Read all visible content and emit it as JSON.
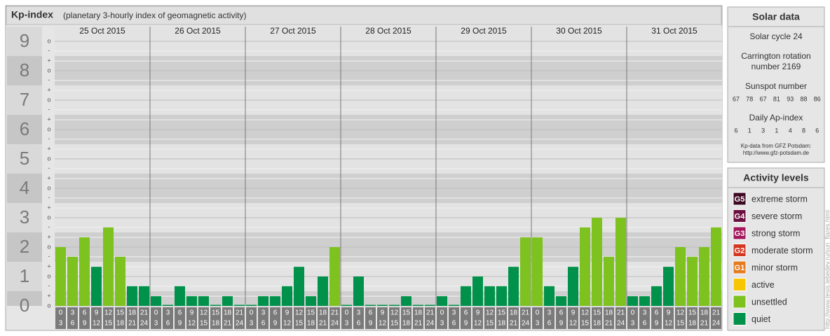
{
  "chart_data": {
    "type": "bar",
    "title": "Kp-index",
    "subtitle": "(planetary 3-hourly index of geomagnetic activity)",
    "ylim": [
      0,
      9
    ],
    "yticks": [
      0,
      1,
      2,
      3,
      4,
      5,
      6,
      7,
      8,
      9
    ],
    "minor_ticks": [
      {
        "value": 0,
        "label": "o"
      },
      {
        "value": 0.33,
        "label": "+"
      },
      {
        "value": 0.67,
        "label": "-"
      },
      {
        "value": 1,
        "label": "o"
      },
      {
        "value": 1.33,
        "label": "+"
      },
      {
        "value": 1.67,
        "label": "-"
      },
      {
        "value": 2,
        "label": "o"
      },
      {
        "value": 2.33,
        "label": "+"
      },
      {
        "value": 2.67,
        "label": "-"
      },
      {
        "value": 3,
        "label": "o"
      },
      {
        "value": 3.33,
        "label": "+"
      },
      {
        "value": 3.67,
        "label": "-"
      },
      {
        "value": 4,
        "label": "o"
      },
      {
        "value": 4.33,
        "label": "+"
      },
      {
        "value": 4.67,
        "label": "-"
      },
      {
        "value": 5,
        "label": "o"
      },
      {
        "value": 5.33,
        "label": "+"
      },
      {
        "value": 5.67,
        "label": "-"
      },
      {
        "value": 6,
        "label": "o"
      },
      {
        "value": 6.33,
        "label": "+"
      },
      {
        "value": 6.67,
        "label": "-"
      },
      {
        "value": 7,
        "label": "o"
      },
      {
        "value": 7.33,
        "label": "+"
      },
      {
        "value": 7.67,
        "label": "-"
      },
      {
        "value": 8,
        "label": "o"
      },
      {
        "value": 8.33,
        "label": "+"
      },
      {
        "value": 8.67,
        "label": "-"
      },
      {
        "value": 9,
        "label": "o"
      }
    ],
    "slots": [
      [
        "0",
        "3"
      ],
      [
        "3",
        "6"
      ],
      [
        "6",
        "9"
      ],
      [
        "9",
        "12"
      ],
      [
        "12",
        "15"
      ],
      [
        "15",
        "18"
      ],
      [
        "18",
        "21"
      ],
      [
        "21",
        "24"
      ]
    ],
    "days": [
      {
        "date": "25 Oct 2015",
        "values": [
          2,
          1.67,
          2.33,
          1.33,
          2.67,
          1.67,
          0.67,
          0.67
        ],
        "colors": [
          "#7dc21f",
          "#7dc21f",
          "#7dc21f",
          "#00924a",
          "#7dc21f",
          "#7dc21f",
          "#00924a",
          "#00924a"
        ]
      },
      {
        "date": "26 Oct 2015",
        "values": [
          0.33,
          0,
          0.67,
          0.33,
          0.33,
          0,
          0.33,
          0
        ],
        "colors": [
          "#00924a",
          "#00924a",
          "#00924a",
          "#00924a",
          "#00924a",
          "#00924a",
          "#00924a",
          "#00924a"
        ]
      },
      {
        "date": "27 Oct 2015",
        "values": [
          0,
          0.33,
          0.33,
          0.67,
          1.33,
          0.33,
          1,
          2
        ],
        "colors": [
          "#00924a",
          "#00924a",
          "#00924a",
          "#00924a",
          "#00924a",
          "#00924a",
          "#00924a",
          "#7dc21f"
        ]
      },
      {
        "date": "28 Oct 2015",
        "values": [
          0,
          1,
          0,
          0,
          0,
          0.33,
          0,
          0
        ],
        "colors": [
          "#00924a",
          "#00924a",
          "#00924a",
          "#00924a",
          "#00924a",
          "#00924a",
          "#00924a",
          "#00924a"
        ]
      },
      {
        "date": "29 Oct 2015",
        "values": [
          0.33,
          0,
          0.67,
          1,
          0.67,
          0.67,
          1.33,
          2.33
        ],
        "colors": [
          "#00924a",
          "#00924a",
          "#00924a",
          "#00924a",
          "#00924a",
          "#00924a",
          "#00924a",
          "#7dc21f"
        ]
      },
      {
        "date": "30 Oct 2015",
        "values": [
          2.33,
          0.67,
          0.33,
          1.33,
          2.67,
          3,
          1.67,
          3
        ],
        "colors": [
          "#7dc21f",
          "#00924a",
          "#00924a",
          "#00924a",
          "#7dc21f",
          "#7dc21f",
          "#7dc21f",
          "#7dc21f"
        ]
      },
      {
        "date": "31 Oct 2015",
        "values": [
          0.33,
          0.33,
          0.67,
          1.33,
          2,
          1.67,
          2,
          2.67
        ],
        "colors": [
          "#00924a",
          "#00924a",
          "#00924a",
          "#00924a",
          "#7dc21f",
          "#7dc21f",
          "#7dc21f",
          "#7dc21f"
        ]
      }
    ]
  },
  "solar_data": {
    "title": "Solar data",
    "cycle": "Solar cycle 24",
    "carrington": [
      "Carrington rotation",
      "number 2169"
    ],
    "sunspot_title": "Sunspot number",
    "sunspot": [
      "67",
      "78",
      "67",
      "81",
      "93",
      "88",
      "86"
    ],
    "ap_title": "Daily Ap-index",
    "ap": [
      "6",
      "1",
      "3",
      "1",
      "4",
      "8",
      "6"
    ],
    "source": [
      "Kp-data from GFZ Potsdam:",
      "http://www.gfz-potsdam.de"
    ]
  },
  "activity_levels": {
    "title": "Activity levels",
    "items": [
      {
        "badge": "G5",
        "name": "extreme storm",
        "color": "#3d0722"
      },
      {
        "badge": "G4",
        "name": "severe storm",
        "color": "#6b0f40"
      },
      {
        "badge": "G3",
        "name": "strong storm",
        "color": "#a3165c"
      },
      {
        "badge": "G2",
        "name": "moderate storm",
        "color": "#d4371f"
      },
      {
        "badge": "G1",
        "name": "minor storm",
        "color": "#e67a1e"
      },
      {
        "name": "active",
        "color": "#f7c600"
      },
      {
        "name": "unsettled",
        "color": "#7dc21f"
      },
      {
        "name": "quiet",
        "color": "#00924a"
      }
    ]
  },
  "credit": "http://www.tesis.lebedev.ru/sun_flares.html"
}
